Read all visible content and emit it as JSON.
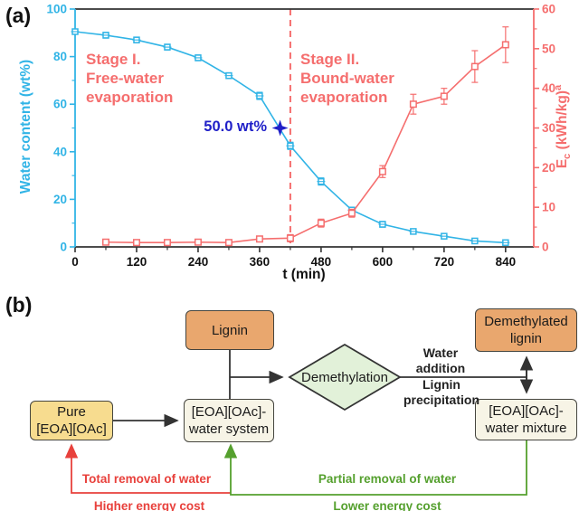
{
  "figure": {
    "panel_a_label": "(a)",
    "panel_b_label": "(b)"
  },
  "panel_a": {
    "stage1": "Stage I.\nFree-water\nevaporation",
    "stage2": "Stage II.\nBound-water\nevaporation",
    "annotation_label": "50.0 wt%",
    "x_axis_title": "t (min)",
    "left_axis_title": "Water content (wt%)",
    "right_axis_title_parts": {
      "base": "E",
      "sub": "c",
      "mid": " (kWh/kg)",
      "sup": "a"
    }
  },
  "chart_data": {
    "type": "line",
    "title": "",
    "xlabel": "t (min)",
    "x_range": [
      0,
      895
    ],
    "x_major_ticks": [
      0,
      120,
      240,
      360,
      480,
      600,
      720,
      840
    ],
    "x_minor_step": 60,
    "left_axis": {
      "label": "Water content (wt%)",
      "range": [
        0,
        100
      ],
      "major_step": 20,
      "minor_step": 10
    },
    "right_axis": {
      "label": "Ec (kWh/kg)^a",
      "range": [
        0,
        60
      ],
      "major_step": 10,
      "minor_step": 5
    },
    "grid": false,
    "vline": {
      "x": 420,
      "style": "dashed",
      "meaning": "boundary between Stage I and Stage II"
    },
    "annotation": {
      "x": 400,
      "y": 50,
      "text": "50.0 wt%",
      "marker": "star"
    },
    "series": [
      {
        "name": "Water content (wt%)",
        "axis": "left",
        "marker": "open-square-cross",
        "x": [
          0,
          60,
          120,
          180,
          240,
          300,
          360,
          420,
          480,
          540,
          600,
          660,
          720,
          780,
          840
        ],
        "y": [
          90.5,
          89,
          87,
          84,
          79.5,
          72,
          63.5,
          42.5,
          27.5,
          15.5,
          9.5,
          6.5,
          4.5,
          2.5,
          1.8
        ],
        "yerr": [
          0.8,
          1.2,
          1.2,
          1.2,
          1.2,
          1.2,
          1.5,
          1.5,
          1.5,
          1.2,
          1.2,
          1.0,
          1.0,
          1.0,
          0.8
        ]
      },
      {
        "name": "Ec (kWh/kg)",
        "axis": "right",
        "marker": "open-square",
        "x": [
          60,
          120,
          180,
          240,
          300,
          360,
          420,
          480,
          540,
          600,
          660,
          720,
          780,
          840
        ],
        "y": [
          1.2,
          1.1,
          1.1,
          1.2,
          1.1,
          2.0,
          2.2,
          6.0,
          8.5,
          19.0,
          36.0,
          38.0,
          45.5,
          51.0
        ],
        "yerr": [
          0.4,
          0.4,
          0.4,
          0.4,
          0.4,
          0.4,
          0.9,
          1.0,
          1.0,
          1.5,
          2.5,
          2.0,
          4.0,
          4.5
        ]
      }
    ]
  },
  "panel_b": {
    "nodes": {
      "lignin": "Lignin",
      "demethylated_lignin": "Demethylated\nlignin",
      "demethylation": "Demethylation",
      "pure_eoa": "Pure\n[EOA][OAc]",
      "water_system": "[EOA][OAc]-\nwater system",
      "water_mixture": "[EOA][OAc]-\nwater mixture"
    },
    "labels": {
      "water_addition": "Water\naddition",
      "lignin_precipitation": "Lignin\nprecipitation",
      "total_removal": "Total removal of water",
      "higher_cost": "Higher energy cost",
      "partial_removal": "Partial removal of water",
      "lower_cost": "Lower energy cost"
    }
  },
  "colors": {
    "water_series": "#31b4e6",
    "energy_series": "#f56e6e",
    "stage_text": "#f56e6e",
    "annotation": "#2020c8",
    "axis_frame": "#333333",
    "box_orange": "#e9a76e",
    "box_yellow": "#f7dc8f",
    "box_cream": "#f7f4e6",
    "diamond_green": "#e2f1d9",
    "arrow_black": "#333333",
    "arrow_red": "#e8413c",
    "arrow_green": "#55a02e"
  }
}
